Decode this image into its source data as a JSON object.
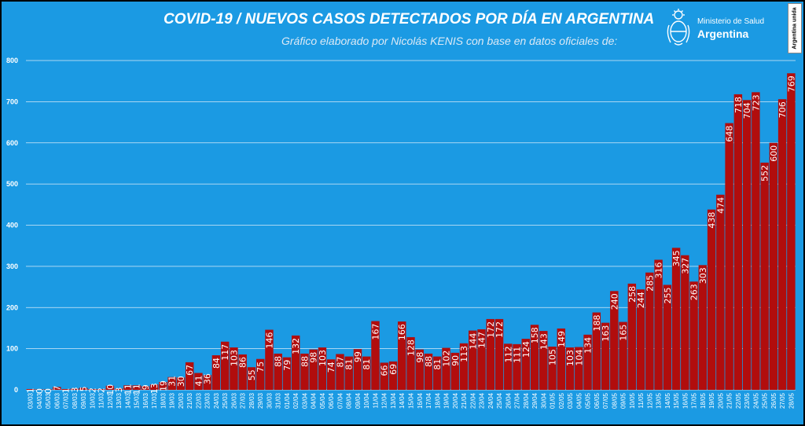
{
  "header": {
    "title": "COVID-19  /  NUEVOS CASOS DETECTADOS POR DÍA EN ARGENTINA",
    "subtitle": "Gráfico elaborado por Nicolás KENIS con base en datos oficiales de:"
  },
  "logo": {
    "ministry": "Ministerio de Salud",
    "country": "Argentina",
    "badge": "Argentina unida",
    "icon": "coat-of-arms-icon"
  },
  "colors": {
    "background": "#1b9ae3",
    "bar": "#b10d0d",
    "gridline": "#d8eaf7",
    "text": "#ffffff"
  },
  "chart_data": {
    "type": "bar",
    "title": "COVID-19  /  NUEVOS CASOS DETECTADOS POR DÍA EN ARGENTINA",
    "xlabel": "",
    "ylabel": "",
    "ylim": [
      0,
      800
    ],
    "yticks": [
      0,
      100,
      200,
      300,
      400,
      500,
      600,
      700,
      800
    ],
    "grid": true,
    "categories": [
      "03/03",
      "04/03",
      "05/03",
      "06/03",
      "07/03",
      "08/03",
      "09/03",
      "10/03",
      "11/03",
      "12/03",
      "13/03",
      "14/03",
      "15/03",
      "16/03",
      "17/03",
      "18/03",
      "19/03",
      "20/03",
      "21/03",
      "22/03",
      "23/03",
      "24/03",
      "25/03",
      "26/03",
      "27/03",
      "28/03",
      "29/03",
      "30/03",
      "31/03",
      "01/04",
      "02/04",
      "03/04",
      "04/04",
      "05/04",
      "06/04",
      "07/04",
      "08/04",
      "09/04",
      "10/04",
      "11/04",
      "12/04",
      "13/04",
      "14/04",
      "15/04",
      "16/04",
      "17/04",
      "18/04",
      "19/04",
      "20/04",
      "21/04",
      "22/04",
      "23/04",
      "24/04",
      "25/04",
      "26/04",
      "27/04",
      "28/04",
      "29/04",
      "30/04",
      "01/05",
      "02/05",
      "03/05",
      "04/05",
      "05/05",
      "06/05",
      "07/05",
      "08/05",
      "09/05",
      "10/05",
      "11/05",
      "12/05",
      "13/05",
      "14/05",
      "15/05",
      "16/05",
      "17/05",
      "18/05",
      "19/05",
      "20/05",
      "21/05",
      "22/05",
      "23/05",
      "24/05",
      "25/05",
      "26/05",
      "27/05",
      "28/05"
    ],
    "tick_labels": [
      "03/03",
      "04/03",
      "05/03",
      "06/03",
      "07/03",
      "08/03",
      "09/03",
      "10/03",
      "11/03",
      "12/03",
      "13/03",
      "14/03",
      "15/03",
      "16/03",
      "17/03",
      "18/03",
      "19/03",
      "20/03",
      "21/03",
      "22/03",
      "23/03",
      "24/03",
      "25/03",
      "26/03",
      "27/03",
      "28/03",
      "29/03",
      "30/03",
      "31/03",
      "01/04",
      "02/04",
      "03/04",
      "04/04",
      "05/04",
      "06/04",
      "07/04",
      "08/04",
      "09/04",
      "10/04",
      "11/04",
      "12/04",
      "13/04",
      "14/04",
      "15/04",
      "16/04",
      "17/04",
      "18/04",
      "19/04",
      "20/04",
      "21/04",
      "22/04",
      "23/04",
      "24/04",
      "25/04",
      "26/04",
      "27/04",
      "28/04",
      "29/04",
      "30/04",
      "01/05",
      "02/05",
      "03/05",
      "04/05",
      "05/05",
      "06/05",
      "07/05",
      "08/05",
      "09/05",
      "10/05",
      "11/05",
      "12/05",
      "13/05",
      "14/05",
      "15/05",
      "16/05",
      "17/05",
      "18/05",
      "19/05",
      "20/05",
      "21/05",
      "22/05",
      "23/05",
      "24/05",
      "25/05",
      "26/05",
      "27/05",
      "28/05"
    ],
    "values": [
      1,
      0,
      0,
      7,
      1,
      3,
      5,
      2,
      2,
      10,
      3,
      11,
      11,
      9,
      13,
      19,
      31,
      30,
      67,
      41,
      36,
      84,
      117,
      103,
      86,
      55,
      75,
      146,
      88,
      79,
      132,
      88,
      98,
      103,
      74,
      87,
      81,
      99,
      81,
      167,
      66,
      69,
      166,
      128,
      98,
      88,
      81,
      102,
      90,
      113,
      144,
      147,
      172,
      172,
      112,
      111,
      124,
      158,
      143,
      105,
      149,
      103,
      104,
      134,
      188,
      163,
      240,
      165,
      258,
      244,
      285,
      316,
      255,
      345,
      327,
      263,
      303,
      438,
      474,
      648,
      718,
      704,
      723,
      552,
      600,
      706,
      769
    ],
    "data_labels": [
      "1",
      "0",
      "0",
      "7",
      "1",
      "3",
      "5",
      "2",
      "2",
      "10",
      "3",
      "11",
      "11",
      "9",
      "13",
      "19",
      "31",
      "30",
      "67",
      "41",
      "36",
      "84",
      "117",
      "103",
      "86",
      "55",
      "75",
      "146",
      "88",
      "79",
      "132",
      "88",
      "98",
      "103",
      "74",
      "87",
      "81",
      "99",
      "81",
      "167",
      "66",
      "69",
      "166",
      "128",
      "98",
      "88",
      "81",
      "102",
      "90",
      "113",
      "144",
      "147",
      "172",
      "172",
      "112",
      "111",
      "124",
      "158",
      "143",
      "105",
      "149",
      "103",
      "104",
      "134",
      "188",
      "163",
      "240",
      "165",
      "258",
      "244",
      "285",
      "316",
      "255",
      "345",
      "327",
      "263",
      "303",
      "438",
      "474",
      "648",
      "718",
      "704",
      "723",
      "552",
      "600",
      "706",
      "769"
    ]
  }
}
